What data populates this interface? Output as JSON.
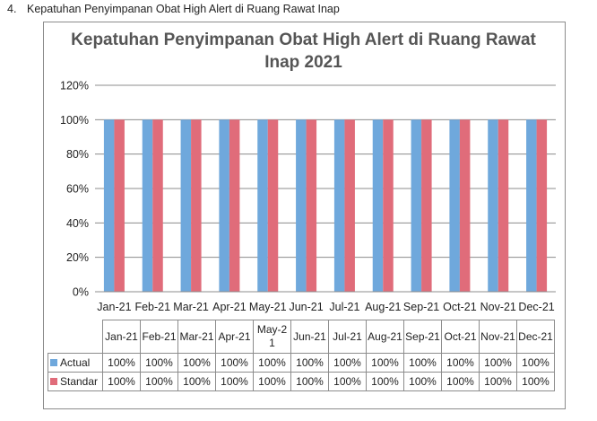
{
  "heading": {
    "number": "4.",
    "text": "Kepatuhan Penyimpanan Obat High Alert di Ruang Rawat Inap"
  },
  "colors": {
    "actual": "#6fa8dc",
    "standar": "#e06c7a",
    "grid": "#8c8c8c"
  },
  "chart_data": {
    "type": "bar",
    "title_lines": [
      "Kepatuhan Penyimpanan Obat High Alert di Ruang Rawat",
      "Inap 2021"
    ],
    "categories": [
      "Jan-21",
      "Feb-21",
      "Mar-21",
      "Apr-21",
      "May-21",
      "Jun-21",
      "Jul-21",
      "Aug-21",
      "Sep-21",
      "Oct-21",
      "Nov-21",
      "Dec-21"
    ],
    "table_headers": [
      "Jan-21",
      "Feb-21",
      "Mar-21",
      "Apr-21",
      "May-2\n1",
      "Jun-21",
      "Jul-21",
      "Aug-21",
      "Sep-21",
      "Oct-21",
      "Nov-21",
      "Dec-21"
    ],
    "series": [
      {
        "name": "Actual",
        "values": [
          100,
          100,
          100,
          100,
          100,
          100,
          100,
          100,
          100,
          100,
          100,
          100
        ],
        "labels": [
          "100%",
          "100%",
          "100%",
          "100%",
          "100%",
          "100%",
          "100%",
          "100%",
          "100%",
          "100%",
          "100%",
          "100%"
        ]
      },
      {
        "name": "Standar",
        "values": [
          100,
          100,
          100,
          100,
          100,
          100,
          100,
          100,
          100,
          100,
          100,
          100
        ],
        "labels": [
          "100%",
          "100%",
          "100%",
          "100%",
          "100%",
          "100%",
          "100%",
          "100%",
          "100%",
          "100%",
          "100%",
          "100%"
        ]
      }
    ],
    "ylim": [
      0,
      120
    ],
    "yticks": [
      0,
      20,
      40,
      60,
      80,
      100,
      120
    ],
    "ytick_labels": [
      "0%",
      "20%",
      "40%",
      "60%",
      "80%",
      "100%",
      "120%"
    ],
    "grid": true,
    "legend": "data-table"
  }
}
